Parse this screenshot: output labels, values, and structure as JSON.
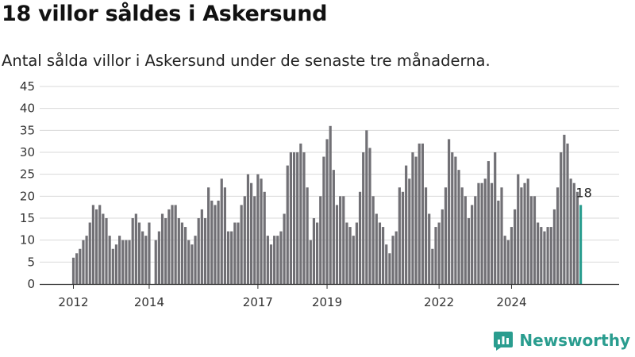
{
  "chart_data": {
    "type": "bar",
    "title": "18 villor såldes i Askersund",
    "subtitle": "Antal sålda villor i Askersund under de senaste tre månaderna.",
    "xlabel": "",
    "ylabel": "",
    "ylim": [
      0,
      45
    ],
    "yticks": [
      "0",
      "5",
      "10",
      "15",
      "20",
      "25",
      "30",
      "35",
      "40",
      "45"
    ],
    "xticks": [
      {
        "label": "2012",
        "index": 0
      },
      {
        "label": "2014",
        "index": 23
      },
      {
        "label": "2017",
        "index": 56
      },
      {
        "label": "2019",
        "index": 77
      },
      {
        "label": "2022",
        "index": 111
      },
      {
        "label": "2024",
        "index": 133
      }
    ],
    "grid": true,
    "legend": "none",
    "colors": {
      "bar": "#717075",
      "highlight": "#2a9d8f",
      "grid": "#d9d9d9",
      "axis": "#333333"
    },
    "values": [
      6,
      7,
      8,
      10,
      11,
      14,
      18,
      17,
      18,
      16,
      15,
      11,
      8,
      9,
      11,
      10,
      10,
      10,
      15,
      16,
      14,
      12,
      11,
      14,
      null,
      10,
      12,
      16,
      15,
      17,
      18,
      18,
      15,
      14,
      13,
      10,
      9,
      11,
      15,
      17,
      15,
      22,
      19,
      18,
      19,
      24,
      22,
      12,
      12,
      14,
      14,
      18,
      20,
      25,
      23,
      20,
      25,
      24,
      21,
      11,
      9,
      11,
      11,
      12,
      16,
      27,
      30,
      30,
      30,
      32,
      30,
      22,
      10,
      15,
      14,
      20,
      29,
      33,
      36,
      26,
      18,
      20,
      20,
      14,
      13,
      11,
      14,
      21,
      30,
      35,
      31,
      20,
      16,
      14,
      13,
      9,
      7,
      11,
      12,
      22,
      21,
      27,
      24,
      30,
      29,
      32,
      32,
      22,
      16,
      8,
      13,
      14,
      17,
      22,
      33,
      30,
      29,
      26,
      22,
      20,
      15,
      18,
      20,
      23,
      23,
      24,
      28,
      23,
      30,
      19,
      22,
      11,
      10,
      13,
      17,
      25,
      22,
      23,
      24,
      20,
      20,
      14,
      13,
      12,
      13,
      13,
      17,
      22,
      30,
      34,
      32,
      24,
      23,
      21,
      18
    ],
    "last_value_label": "18"
  },
  "branding": {
    "name": "Newsworthy",
    "icon": "newsworthy-logo-icon"
  }
}
